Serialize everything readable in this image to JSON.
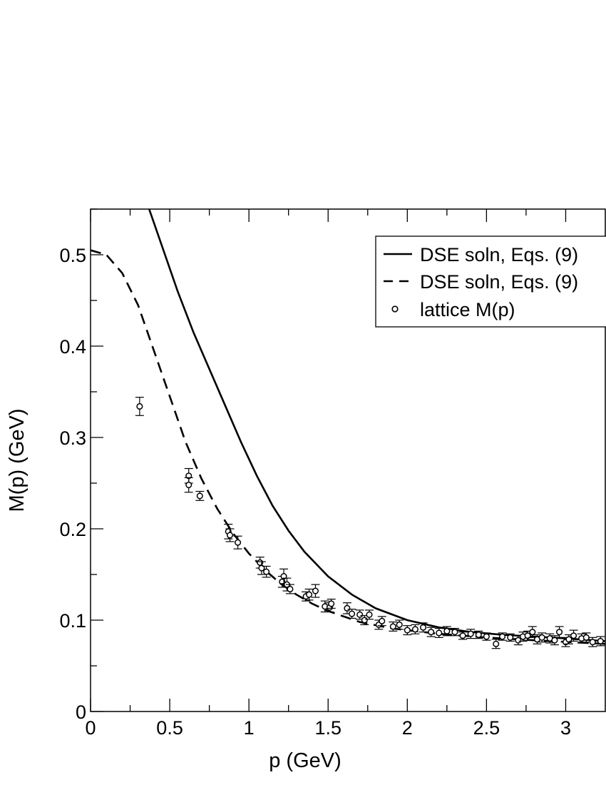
{
  "chart_data": {
    "type": "line",
    "title": "",
    "xlabel": "p (GeV)",
    "ylabel": "M(p) (GeV)",
    "xlim": [
      0,
      3.25
    ],
    "ylim": [
      0,
      0.55
    ],
    "x_ticks": [
      0,
      0.5,
      1,
      1.5,
      2,
      2.5,
      3
    ],
    "x_tick_labels": [
      "0",
      "0.5",
      "1",
      "1.5",
      "2",
      "2.5",
      "3"
    ],
    "y_ticks": [
      0,
      0.1,
      0.2,
      0.3,
      0.4,
      0.5
    ],
    "y_tick_labels": [
      "0",
      "0.1",
      "0.2",
      "0.3",
      "0.4",
      "0.5"
    ],
    "grid": false,
    "legend_position": "top-right",
    "series": [
      {
        "name": "DSE soln, Eqs. (9)",
        "style": "solid",
        "x": [
          0.37,
          0.45,
          0.55,
          0.65,
          0.75,
          0.85,
          0.95,
          1.05,
          1.15,
          1.25,
          1.35,
          1.5,
          1.65,
          1.8,
          2.0,
          2.2,
          2.4,
          2.6,
          2.8,
          3.0,
          3.25
        ],
        "y": [
          0.55,
          0.51,
          0.46,
          0.415,
          0.375,
          0.335,
          0.295,
          0.258,
          0.225,
          0.198,
          0.175,
          0.148,
          0.128,
          0.113,
          0.1,
          0.092,
          0.087,
          0.084,
          0.082,
          0.08,
          0.077
        ]
      },
      {
        "name": "DSE soln, Eqs. (9)",
        "style": "dashed",
        "x": [
          0,
          0.1,
          0.2,
          0.3,
          0.4,
          0.5,
          0.6,
          0.7,
          0.8,
          0.9,
          1.0,
          1.1,
          1.2,
          1.3,
          1.4,
          1.5,
          1.7,
          1.9,
          2.2,
          2.5,
          2.8,
          3.25
        ],
        "y": [
          0.505,
          0.5,
          0.48,
          0.445,
          0.395,
          0.345,
          0.295,
          0.255,
          0.222,
          0.195,
          0.173,
          0.155,
          0.14,
          0.128,
          0.118,
          0.11,
          0.098,
          0.091,
          0.085,
          0.081,
          0.078,
          0.074
        ]
      },
      {
        "name": "lattice M(p)",
        "style": "points",
        "x": [
          0.31,
          0.62,
          0.62,
          0.69,
          0.87,
          0.88,
          0.93,
          1.07,
          1.08,
          1.11,
          1.21,
          1.22,
          1.24,
          1.26,
          1.36,
          1.38,
          1.42,
          1.48,
          1.51,
          1.52,
          1.62,
          1.65,
          1.7,
          1.73,
          1.76,
          1.82,
          1.84,
          1.91,
          1.95,
          2.0,
          2.05,
          2.1,
          2.15,
          2.2,
          2.25,
          2.3,
          2.35,
          2.4,
          2.45,
          2.5,
          2.56,
          2.6,
          2.65,
          2.7,
          2.73,
          2.76,
          2.79,
          2.82,
          2.85,
          2.9,
          2.93,
          2.96,
          3.0,
          3.02,
          3.05,
          3.1,
          3.13,
          3.17,
          3.22
        ],
        "y": [
          0.334,
          0.258,
          0.248,
          0.236,
          0.197,
          0.193,
          0.185,
          0.163,
          0.157,
          0.153,
          0.142,
          0.148,
          0.139,
          0.134,
          0.126,
          0.128,
          0.132,
          0.115,
          0.114,
          0.118,
          0.113,
          0.107,
          0.106,
          0.1,
          0.106,
          0.095,
          0.099,
          0.093,
          0.095,
          0.089,
          0.09,
          0.092,
          0.087,
          0.086,
          0.088,
          0.087,
          0.083,
          0.085,
          0.084,
          0.082,
          0.074,
          0.082,
          0.081,
          0.078,
          0.082,
          0.083,
          0.087,
          0.079,
          0.081,
          0.08,
          0.078,
          0.087,
          0.076,
          0.079,
          0.083,
          0.08,
          0.081,
          0.076,
          0.077
        ],
        "yerr": [
          0.01,
          0.008,
          0.008,
          0.005,
          0.008,
          0.007,
          0.007,
          0.006,
          0.007,
          0.006,
          0.006,
          0.008,
          0.007,
          0.005,
          0.005,
          0.006,
          0.007,
          0.006,
          0.005,
          0.005,
          0.006,
          0.005,
          0.005,
          0.005,
          0.005,
          0.005,
          0.005,
          0.005,
          0.005,
          0.005,
          0.005,
          0.005,
          0.005,
          0.005,
          0.005,
          0.004,
          0.004,
          0.005,
          0.004,
          0.004,
          0.005,
          0.004,
          0.004,
          0.005,
          0.005,
          0.005,
          0.006,
          0.005,
          0.005,
          0.005,
          0.005,
          0.006,
          0.005,
          0.005,
          0.006,
          0.005,
          0.005,
          0.005,
          0.005
        ]
      }
    ]
  },
  "legend": {
    "items": [
      {
        "label": "DSE soln, Eqs. (9)",
        "style": "solid"
      },
      {
        "label": "DSE soln, Eqs. (9)",
        "style": "dashed"
      },
      {
        "label": "lattice M(p)",
        "style": "points"
      }
    ]
  }
}
